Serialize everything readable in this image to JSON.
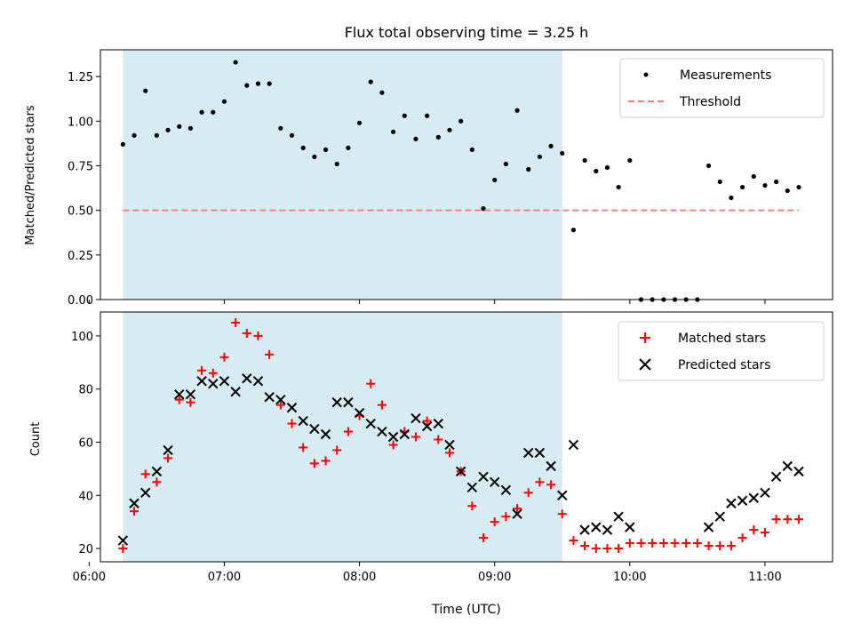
{
  "chart_data": [
    {
      "type": "scatter",
      "title": "Flux total observing time = 3.25 h",
      "xlabel": "",
      "ylabel": "Matched/Predicted stars",
      "x_format": "HH:MM",
      "xlim": [
        "06:05",
        "11:30"
      ],
      "ylim": [
        0,
        1.4
      ],
      "yticks": [
        "0.00",
        "0.25",
        "0.50",
        "0.75",
        "1.00",
        "1.25"
      ],
      "shaded_interval": {
        "start": "06:15",
        "end": "09:30",
        "color": "#add8e6"
      },
      "legend_position": "top-right",
      "legend": [
        "Measurements",
        "Threshold"
      ],
      "series": [
        {
          "name": "Measurements",
          "marker": "dot",
          "color": "#000000",
          "x": [
            "06:15",
            "06:20",
            "06:25",
            "06:30",
            "06:35",
            "06:40",
            "06:45",
            "06:50",
            "06:55",
            "07:00",
            "07:05",
            "07:10",
            "07:15",
            "07:20",
            "07:25",
            "07:30",
            "07:35",
            "07:40",
            "07:45",
            "07:50",
            "07:55",
            "08:00",
            "08:05",
            "08:10",
            "08:15",
            "08:20",
            "08:25",
            "08:30",
            "08:35",
            "08:40",
            "08:45",
            "08:50",
            "08:55",
            "09:00",
            "09:05",
            "09:10",
            "09:15",
            "09:20",
            "09:25",
            "09:30",
            "09:35",
            "09:40",
            "09:45",
            "09:50",
            "09:55",
            "10:00",
            "10:05",
            "10:10",
            "10:15",
            "10:20",
            "10:25",
            "10:30",
            "10:35",
            "10:40",
            "10:45",
            "10:50",
            "10:55",
            "11:00",
            "11:05",
            "11:10",
            "11:15"
          ],
          "y": [
            0.87,
            0.92,
            1.17,
            0.92,
            0.95,
            0.97,
            0.96,
            1.05,
            1.05,
            1.11,
            1.33,
            1.2,
            1.21,
            1.21,
            0.96,
            0.92,
            0.85,
            0.8,
            0.84,
            0.76,
            0.85,
            0.99,
            1.22,
            1.16,
            0.94,
            1.03,
            0.9,
            1.03,
            0.91,
            0.95,
            1.0,
            0.84,
            0.51,
            0.67,
            0.76,
            1.06,
            0.73,
            0.8,
            0.86,
            0.82,
            0.39,
            0.78,
            0.72,
            0.74,
            0.63,
            0.78,
            0.0,
            0.0,
            0.0,
            0.0,
            0.0,
            0.0,
            0.75,
            0.66,
            0.57,
            0.63,
            0.69,
            0.64,
            0.66,
            0.61,
            0.63
          ]
        },
        {
          "name": "Threshold",
          "marker": "dashed-line",
          "color": "#ff7f7f",
          "x": [
            "06:15",
            "11:15"
          ],
          "y": [
            0.5,
            0.5
          ]
        }
      ]
    },
    {
      "type": "scatter",
      "title": "",
      "xlabel": "Time (UTC)",
      "ylabel": "Count",
      "x_format": "HH:MM",
      "xlim": [
        "06:05",
        "11:30"
      ],
      "ylim": [
        15,
        109
      ],
      "yticks": [
        "20",
        "40",
        "60",
        "80",
        "100"
      ],
      "xticks": [
        "06:00",
        "07:00",
        "08:00",
        "09:00",
        "10:00",
        "11:00"
      ],
      "shaded_interval": {
        "start": "06:15",
        "end": "09:30",
        "color": "#add8e6"
      },
      "legend_position": "top-right",
      "legend": [
        "Matched stars",
        "Predicted stars"
      ],
      "series": [
        {
          "name": "Matched stars",
          "marker": "plus",
          "color": "#ff0000",
          "x": [
            "06:15",
            "06:20",
            "06:25",
            "06:30",
            "06:35",
            "06:40",
            "06:45",
            "06:50",
            "06:55",
            "07:00",
            "07:05",
            "07:10",
            "07:15",
            "07:20",
            "07:25",
            "07:30",
            "07:35",
            "07:40",
            "07:45",
            "07:50",
            "07:55",
            "08:00",
            "08:05",
            "08:10",
            "08:15",
            "08:20",
            "08:25",
            "08:30",
            "08:35",
            "08:40",
            "08:45",
            "08:50",
            "08:55",
            "09:00",
            "09:05",
            "09:10",
            "09:15",
            "09:20",
            "09:25",
            "09:30",
            "09:35",
            "09:40",
            "09:45",
            "09:50",
            "09:55",
            "10:00",
            "10:05",
            "10:10",
            "10:15",
            "10:20",
            "10:25",
            "10:30",
            "10:35",
            "10:40",
            "10:45",
            "10:50",
            "10:55",
            "11:00",
            "11:05",
            "11:10",
            "11:15"
          ],
          "y": [
            20,
            34,
            48,
            45,
            54,
            76,
            75,
            87,
            86,
            92,
            105,
            101,
            100,
            93,
            74,
            67,
            58,
            52,
            53,
            57,
            64,
            70,
            82,
            74,
            59,
            64,
            62,
            68,
            61,
            56,
            49,
            36,
            24,
            30,
            32,
            35,
            41,
            45,
            44,
            33,
            23,
            21,
            20,
            20,
            20,
            22,
            22,
            22,
            22,
            22,
            22,
            22,
            21,
            21,
            21,
            24,
            27,
            26,
            31,
            31,
            31
          ]
        },
        {
          "name": "Predicted stars",
          "marker": "x",
          "color": "#000000",
          "x": [
            "06:15",
            "06:20",
            "06:25",
            "06:30",
            "06:35",
            "06:40",
            "06:45",
            "06:50",
            "06:55",
            "07:00",
            "07:05",
            "07:10",
            "07:15",
            "07:20",
            "07:25",
            "07:30",
            "07:35",
            "07:40",
            "07:45",
            "07:50",
            "07:55",
            "08:00",
            "08:05",
            "08:10",
            "08:15",
            "08:20",
            "08:25",
            "08:30",
            "08:35",
            "08:40",
            "08:45",
            "08:50",
            "08:55",
            "09:00",
            "09:05",
            "09:10",
            "09:15",
            "09:20",
            "09:25",
            "09:30",
            "09:35",
            "09:40",
            "09:45",
            "09:50",
            "09:55",
            "10:00",
            "10:35",
            "10:40",
            "10:45",
            "10:50",
            "10:55",
            "11:00",
            "11:05",
            "11:10",
            "11:15"
          ],
          "y": [
            23,
            37,
            41,
            49,
            57,
            78,
            78,
            83,
            82,
            83,
            79,
            84,
            83,
            77,
            76,
            73,
            68,
            65,
            63,
            75,
            75,
            71,
            67,
            64,
            62,
            63,
            69,
            66,
            67,
            59,
            49,
            43,
            47,
            45,
            42,
            33,
            56,
            56,
            51,
            40,
            59,
            27,
            28,
            27,
            32,
            28,
            28,
            32,
            37,
            38,
            39,
            41,
            47,
            51,
            49
          ]
        }
      ]
    }
  ]
}
